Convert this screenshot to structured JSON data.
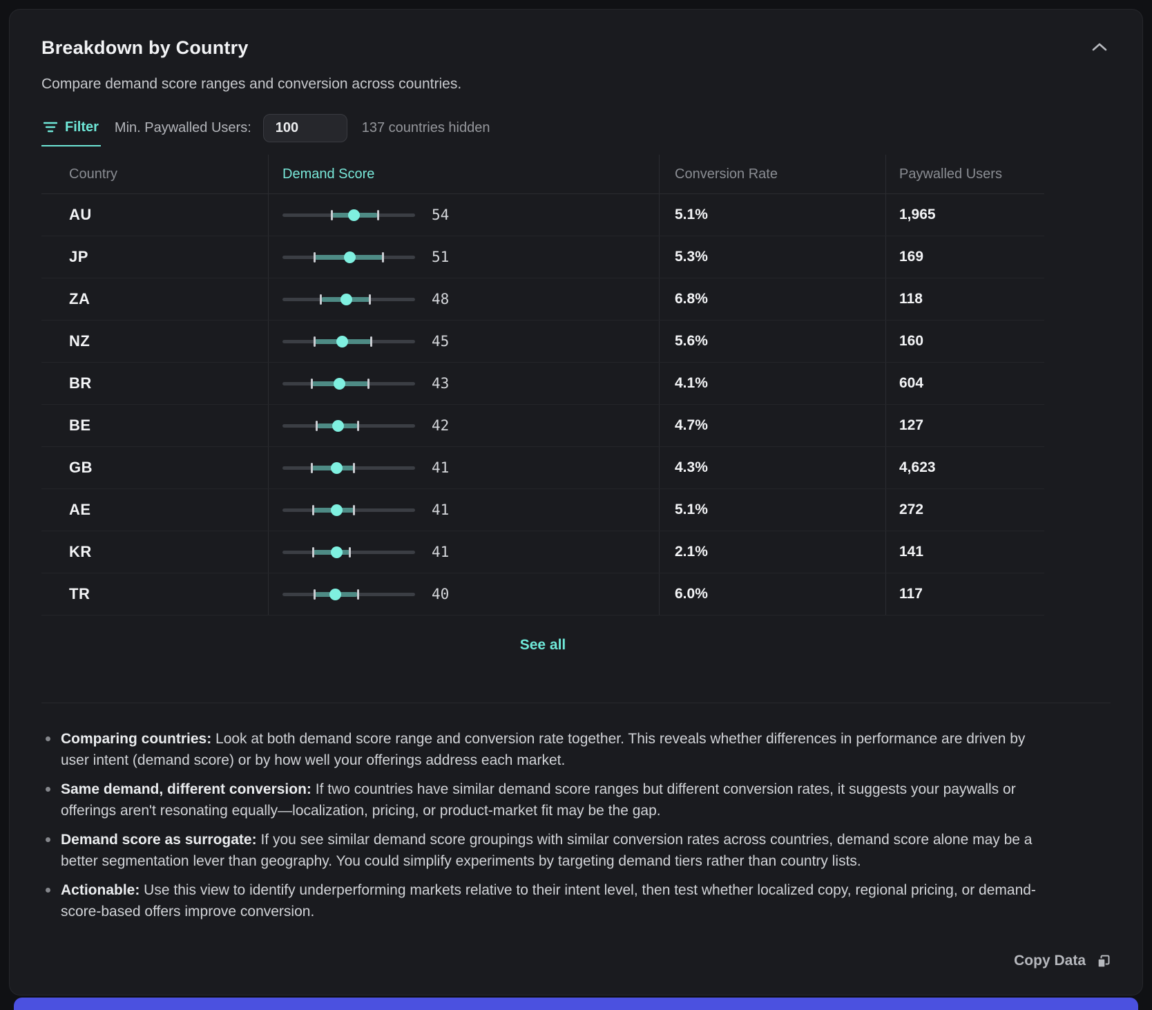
{
  "card": {
    "title": "Breakdown by Country",
    "subtitle": "Compare demand score ranges and conversion across countries."
  },
  "filter": {
    "tab_label": "Filter",
    "min_users_label": "Min. Paywalled Users:",
    "min_users_value": "100",
    "hidden_summary": "137 countries hidden"
  },
  "table": {
    "columns": {
      "country": "Country",
      "demand_score": "Demand Score",
      "conversion_rate": "Conversion Rate",
      "paywalled_users": "Paywalled Users"
    },
    "score_scale": {
      "min": 0,
      "max": 100
    },
    "rows": [
      {
        "country": "AU",
        "score": 54,
        "range_low": 37,
        "range_high": 72,
        "conversion_rate": "5.1%",
        "paywalled_users": "1,965"
      },
      {
        "country": "JP",
        "score": 51,
        "range_low": 24,
        "range_high": 76,
        "conversion_rate": "5.3%",
        "paywalled_users": "169"
      },
      {
        "country": "ZA",
        "score": 48,
        "range_low": 29,
        "range_high": 66,
        "conversion_rate": "6.8%",
        "paywalled_users": "118"
      },
      {
        "country": "NZ",
        "score": 45,
        "range_low": 24,
        "range_high": 67,
        "conversion_rate": "5.6%",
        "paywalled_users": "160"
      },
      {
        "country": "BR",
        "score": 43,
        "range_low": 22,
        "range_high": 65,
        "conversion_rate": "4.1%",
        "paywalled_users": "604"
      },
      {
        "country": "BE",
        "score": 42,
        "range_low": 26,
        "range_high": 57,
        "conversion_rate": "4.7%",
        "paywalled_users": "127"
      },
      {
        "country": "GB",
        "score": 41,
        "range_low": 22,
        "range_high": 54,
        "conversion_rate": "4.3%",
        "paywalled_users": "4,623"
      },
      {
        "country": "AE",
        "score": 41,
        "range_low": 23,
        "range_high": 54,
        "conversion_rate": "5.1%",
        "paywalled_users": "272"
      },
      {
        "country": "KR",
        "score": 41,
        "range_low": 23,
        "range_high": 51,
        "conversion_rate": "2.1%",
        "paywalled_users": "141"
      },
      {
        "country": "TR",
        "score": 40,
        "range_low": 24,
        "range_high": 57,
        "conversion_rate": "6.0%",
        "paywalled_users": "117"
      }
    ]
  },
  "see_all_label": "See all",
  "notes": [
    {
      "lead": "Comparing countries:",
      "text": " Look at both demand score range and conversion rate together. This reveals whether differences in performance are driven by user intent (demand score) or by how well your offerings address each market."
    },
    {
      "lead": "Same demand, different conversion:",
      "text": " If two countries have similar demand score ranges but different conversion rates, it suggests your paywalls or offerings aren't resonating equally—localization, pricing, or product-market fit may be the gap."
    },
    {
      "lead": "Demand score as surrogate:",
      "text": " If you see similar demand score groupings with similar conversion rates across countries, demand score alone may be a better segmentation lever than geography. You could simplify experiments by targeting demand tiers rather than country lists."
    },
    {
      "lead": "Actionable:",
      "text": " Use this view to identify underperforming markets relative to their intent level, then test whether localized copy, regional pricing, or demand-score-based offers improve conversion."
    }
  ],
  "footer": {
    "copy_label": "Copy Data"
  },
  "colors": {
    "accent_teal": "#6fe8d8",
    "range_band": "#4e8b85",
    "score_dot": "#7ff0e0",
    "slider_track": "#3b3e44",
    "card_bg": "#1a1b1f",
    "bottom_bar": "#4b51e0"
  }
}
